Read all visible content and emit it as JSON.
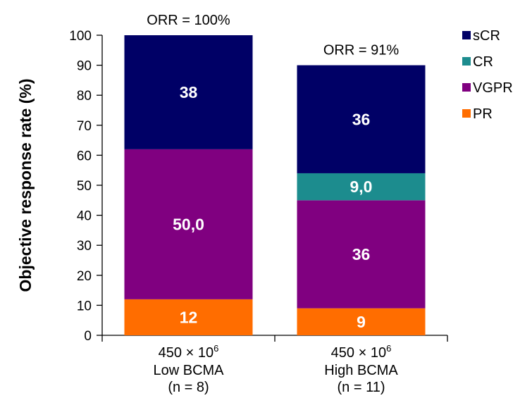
{
  "chart_data": {
    "type": "bar",
    "stacked": true,
    "ylabel": "Objective response rate (%)",
    "ylim": [
      0,
      100
    ],
    "yticks": [
      0,
      10,
      20,
      30,
      40,
      50,
      60,
      70,
      80,
      90,
      100
    ],
    "categories": [
      {
        "dose": "450 × 10",
        "exponent": "6",
        "group": "Low BCMA",
        "n": "(n = 8)",
        "orr_label": "ORR = 100%"
      },
      {
        "dose": "450 × 10",
        "exponent": "6",
        "group": "High BCMA",
        "n": "(n = 11)",
        "orr_label": "ORR = 91%"
      }
    ],
    "series": [
      {
        "name": "PR",
        "color": "#ff6d00",
        "values": [
          12,
          9
        ],
        "labels": [
          "12",
          "9"
        ]
      },
      {
        "name": "VGPR",
        "color": "#800080",
        "values": [
          50,
          36
        ],
        "labels": [
          "50,0",
          "36"
        ]
      },
      {
        "name": "CR",
        "color": "#1c8c8e",
        "values": [
          0,
          9
        ],
        "labels": [
          "",
          "9,0"
        ]
      },
      {
        "name": "sCR",
        "color": "#000066",
        "values": [
          38,
          36
        ],
        "labels": [
          "38",
          "36"
        ]
      }
    ],
    "legend_order": [
      "sCR",
      "CR",
      "VGPR",
      "PR"
    ],
    "legend_position": "top-right"
  }
}
